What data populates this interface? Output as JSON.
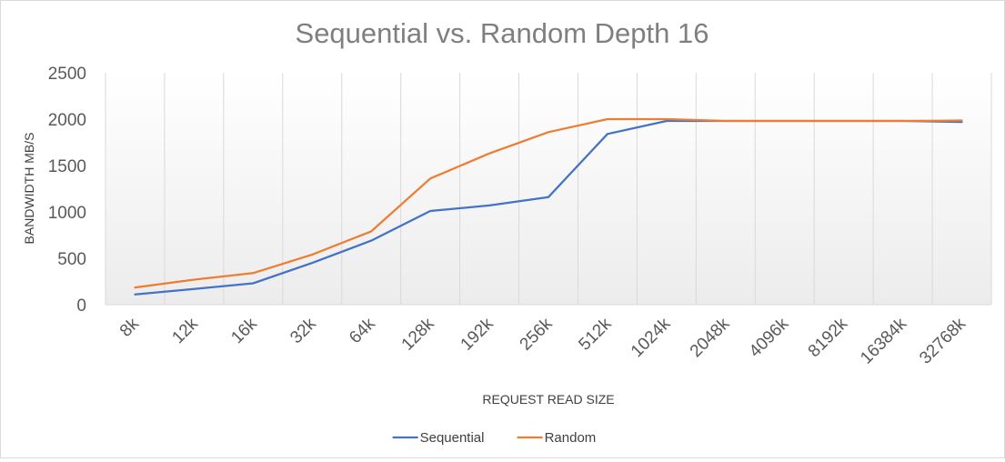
{
  "chart_data": {
    "type": "line",
    "title": "Sequential vs. Random Depth 16",
    "xlabel": "REQUEST READ SIZE",
    "ylabel": "BANDWIDTH MB/S",
    "categories": [
      "8k",
      "12k",
      "16k",
      "32k",
      "64k",
      "128k",
      "192k",
      "256k",
      "512k",
      "1024k",
      "2048k",
      "4096k",
      "8192k",
      "16384k",
      "32768k"
    ],
    "yticks": [
      "0",
      "500",
      "1000",
      "1500",
      "2000",
      "2500"
    ],
    "ylim": [
      0,
      2500
    ],
    "grid": "vertical",
    "legend_position": "bottom",
    "series": [
      {
        "name": "Sequential",
        "color": "#4472c4",
        "values": [
          110,
          170,
          230,
          450,
          690,
          1010,
          1070,
          1160,
          1840,
          1980,
          1980,
          1980,
          1980,
          1980,
          1970
        ]
      },
      {
        "name": "Random",
        "color": "#ed7d31",
        "values": [
          185,
          270,
          340,
          540,
          790,
          1360,
          1630,
          1860,
          2000,
          2000,
          1980,
          1980,
          1980,
          1980,
          1985
        ]
      }
    ]
  }
}
